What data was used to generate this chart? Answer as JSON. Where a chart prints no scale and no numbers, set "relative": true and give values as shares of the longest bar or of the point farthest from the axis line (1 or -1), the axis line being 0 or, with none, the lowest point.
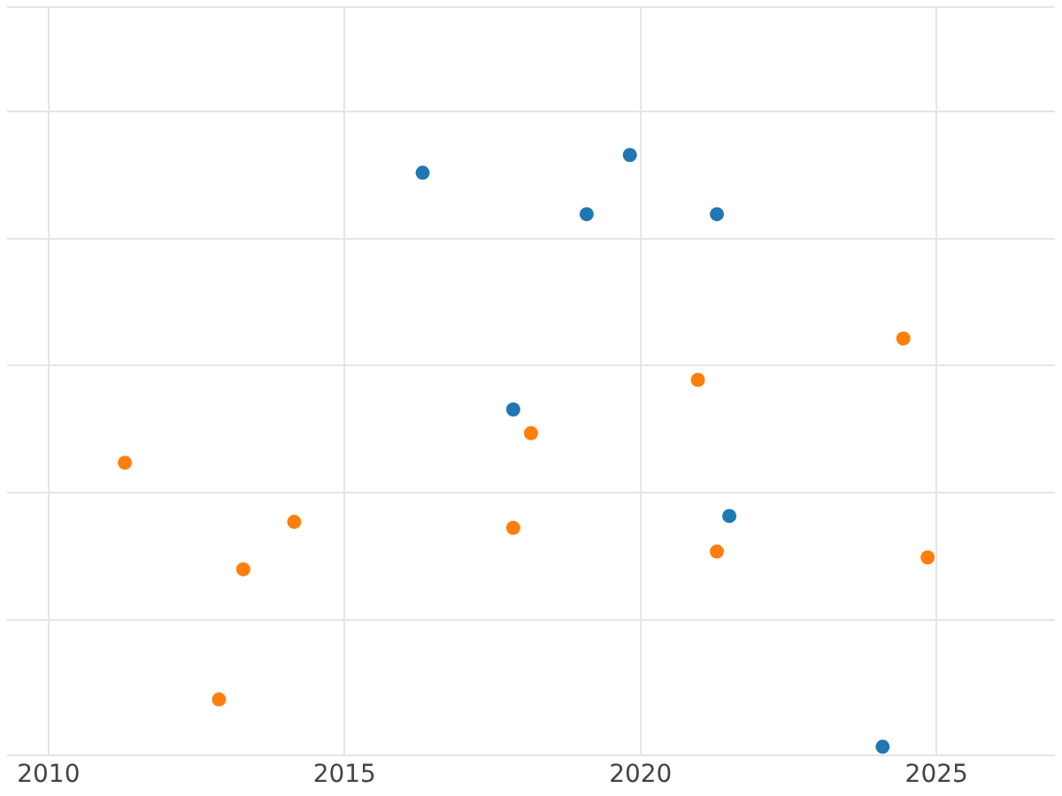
{
  "chart_data": {
    "type": "scatter",
    "relative": true,
    "xlim": [
      2009.3,
      2027
    ],
    "xticks": [
      2010,
      2015,
      2020,
      2025
    ],
    "grid": true,
    "legend": false,
    "marker": "circle",
    "tick_labels": "x",
    "series": [
      {
        "color": "#1f77b4",
        "x": [
          2016.32,
          2019.82,
          2019.09,
          2021.29,
          2017.85,
          2021.5,
          2024.09
        ],
        "values": [
          0.97,
          1,
          0.9,
          0.9,
          0.57,
          0.39,
          0
        ]
      },
      {
        "color": "#ff7f0e",
        "x": [
          2024.44,
          2020.97,
          2018.15,
          2011.29,
          2014.15,
          2017.85,
          2013.29,
          2021.29,
          2024.85,
          2012.88
        ],
        "values": [
          0.69,
          0.62,
          0.53,
          0.48,
          0.38,
          0.37,
          0.3,
          0.33,
          0.32,
          0.08
        ]
      }
    ]
  }
}
